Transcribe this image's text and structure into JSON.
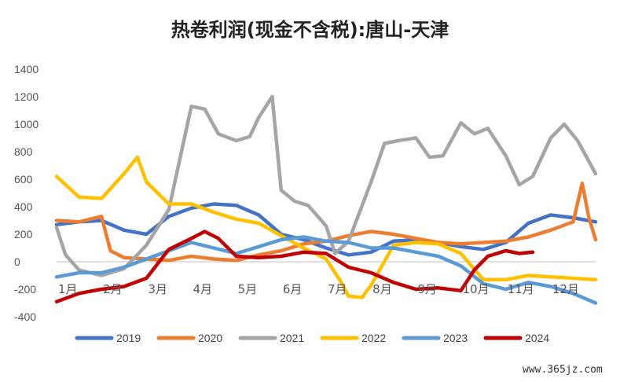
{
  "chart_data": {
    "type": "line",
    "title": "热卷利润(现金不含税):唐山-天津",
    "xlabel": "",
    "ylabel": "",
    "ylim": [
      -400,
      1400
    ],
    "y_ticks": [
      -400,
      -200,
      0,
      200,
      400,
      600,
      800,
      1000,
      1200,
      1400
    ],
    "x_range": [
      1,
      13
    ],
    "x_ticks": [
      {
        "x": 1,
        "label": "1月"
      },
      {
        "x": 2,
        "label": "2月"
      },
      {
        "x": 3,
        "label": "3月"
      },
      {
        "x": 4,
        "label": "4月"
      },
      {
        "x": 5,
        "label": "5月"
      },
      {
        "x": 6,
        "label": "6月"
      },
      {
        "x": 7,
        "label": "7月"
      },
      {
        "x": 8,
        "label": "8月"
      },
      {
        "x": 9,
        "label": "9月"
      },
      {
        "x": 10,
        "label": "10月"
      },
      {
        "x": 11,
        "label": "11月"
      },
      {
        "x": 12,
        "label": "12月"
      }
    ],
    "grid": false,
    "legend": "bottom",
    "series": [
      {
        "name": "2019",
        "color": "#4472C4",
        "points": [
          [
            1,
            270
          ],
          [
            1.5,
            290
          ],
          [
            2,
            300
          ],
          [
            2.5,
            230
          ],
          [
            3,
            200
          ],
          [
            3.5,
            330
          ],
          [
            4,
            390
          ],
          [
            4.5,
            420
          ],
          [
            5,
            410
          ],
          [
            5.5,
            340
          ],
          [
            6,
            200
          ],
          [
            6.5,
            160
          ],
          [
            7,
            100
          ],
          [
            7.5,
            50
          ],
          [
            8,
            70
          ],
          [
            8.5,
            150
          ],
          [
            9,
            160
          ],
          [
            9.5,
            140
          ],
          [
            10,
            110
          ],
          [
            10.5,
            90
          ],
          [
            11,
            140
          ],
          [
            11.5,
            280
          ],
          [
            12,
            340
          ],
          [
            12.5,
            320
          ],
          [
            13,
            290
          ]
        ]
      },
      {
        "name": "2020",
        "color": "#ED7D31",
        "points": [
          [
            1,
            300
          ],
          [
            1.5,
            290
          ],
          [
            2,
            330
          ],
          [
            2.2,
            80
          ],
          [
            2.5,
            30
          ],
          [
            3,
            20
          ],
          [
            3.5,
            10
          ],
          [
            4,
            40
          ],
          [
            4.5,
            20
          ],
          [
            5,
            10
          ],
          [
            5.5,
            50
          ],
          [
            6,
            80
          ],
          [
            6.5,
            130
          ],
          [
            7,
            150
          ],
          [
            7.5,
            190
          ],
          [
            8,
            220
          ],
          [
            8.5,
            200
          ],
          [
            9,
            170
          ],
          [
            9.5,
            140
          ],
          [
            10,
            130
          ],
          [
            10.5,
            140
          ],
          [
            11,
            150
          ],
          [
            11.5,
            180
          ],
          [
            12,
            230
          ],
          [
            12.5,
            290
          ],
          [
            12.7,
            570
          ],
          [
            12.85,
            320
          ],
          [
            13,
            160
          ]
        ]
      },
      {
        "name": "2021",
        "color": "#A5A5A5",
        "points": [
          [
            1,
            250
          ],
          [
            1.2,
            50
          ],
          [
            1.5,
            -60
          ],
          [
            2,
            -100
          ],
          [
            2.5,
            -50
          ],
          [
            3,
            120
          ],
          [
            3.5,
            380
          ],
          [
            4,
            1130
          ],
          [
            4.3,
            1110
          ],
          [
            4.6,
            930
          ],
          [
            5,
            880
          ],
          [
            5.3,
            910
          ],
          [
            5.5,
            1050
          ],
          [
            5.8,
            1200
          ],
          [
            6,
            520
          ],
          [
            6.3,
            440
          ],
          [
            6.6,
            410
          ],
          [
            7,
            260
          ],
          [
            7.2,
            60
          ],
          [
            7.5,
            150
          ],
          [
            8,
            580
          ],
          [
            8.3,
            860
          ],
          [
            8.6,
            880
          ],
          [
            9,
            900
          ],
          [
            9.3,
            760
          ],
          [
            9.6,
            770
          ],
          [
            10,
            1010
          ],
          [
            10.3,
            930
          ],
          [
            10.6,
            970
          ],
          [
            11,
            770
          ],
          [
            11.3,
            560
          ],
          [
            11.6,
            620
          ],
          [
            12,
            900
          ],
          [
            12.3,
            1000
          ],
          [
            12.6,
            880
          ],
          [
            13,
            640
          ]
        ]
      },
      {
        "name": "2022",
        "color": "#FFC000",
        "points": [
          [
            1,
            620
          ],
          [
            1.5,
            470
          ],
          [
            2,
            460
          ],
          [
            2.5,
            640
          ],
          [
            2.8,
            760
          ],
          [
            3,
            580
          ],
          [
            3.5,
            420
          ],
          [
            4,
            420
          ],
          [
            4.5,
            360
          ],
          [
            5,
            310
          ],
          [
            5.5,
            280
          ],
          [
            6,
            190
          ],
          [
            6.5,
            100
          ],
          [
            7,
            20
          ],
          [
            7.3,
            -130
          ],
          [
            7.5,
            -250
          ],
          [
            7.8,
            -260
          ],
          [
            8,
            -170
          ],
          [
            8.5,
            120
          ],
          [
            9,
            140
          ],
          [
            9.5,
            130
          ],
          [
            10,
            60
          ],
          [
            10.5,
            -130
          ],
          [
            11,
            -130
          ],
          [
            11.5,
            -100
          ],
          [
            12,
            -110
          ],
          [
            12.5,
            -120
          ],
          [
            13,
            -130
          ]
        ]
      },
      {
        "name": "2023",
        "color": "#5B9BD5",
        "points": [
          [
            1,
            -110
          ],
          [
            1.5,
            -80
          ],
          [
            2,
            -80
          ],
          [
            2.5,
            -40
          ],
          [
            3,
            20
          ],
          [
            3.5,
            80
          ],
          [
            4,
            140
          ],
          [
            4.5,
            100
          ],
          [
            5,
            60
          ],
          [
            5.5,
            110
          ],
          [
            6,
            160
          ],
          [
            6.5,
            180
          ],
          [
            7,
            150
          ],
          [
            7.5,
            140
          ],
          [
            8,
            100
          ],
          [
            8.5,
            100
          ],
          [
            9,
            70
          ],
          [
            9.5,
            40
          ],
          [
            10,
            -30
          ],
          [
            10.5,
            -160
          ],
          [
            11,
            -200
          ],
          [
            11.5,
            -150
          ],
          [
            12,
            -180
          ],
          [
            12.5,
            -230
          ],
          [
            13,
            -300
          ]
        ]
      },
      {
        "name": "2024",
        "color": "#C00000",
        "points": [
          [
            1,
            -290
          ],
          [
            1.5,
            -230
          ],
          [
            2,
            -200
          ],
          [
            2.5,
            -180
          ],
          [
            3,
            -120
          ],
          [
            3.5,
            90
          ],
          [
            4,
            170
          ],
          [
            4.3,
            220
          ],
          [
            4.6,
            170
          ],
          [
            5,
            40
          ],
          [
            5.5,
            30
          ],
          [
            6,
            40
          ],
          [
            6.5,
            70
          ],
          [
            7,
            60
          ],
          [
            7.5,
            -40
          ],
          [
            8,
            -80
          ],
          [
            8.5,
            -150
          ],
          [
            9,
            -200
          ],
          [
            9.5,
            -190
          ],
          [
            10,
            -210
          ],
          [
            10.3,
            -60
          ],
          [
            10.6,
            40
          ],
          [
            11,
            80
          ],
          [
            11.3,
            60
          ],
          [
            11.6,
            70
          ]
        ]
      }
    ]
  },
  "watermark": "www.365jz.com"
}
